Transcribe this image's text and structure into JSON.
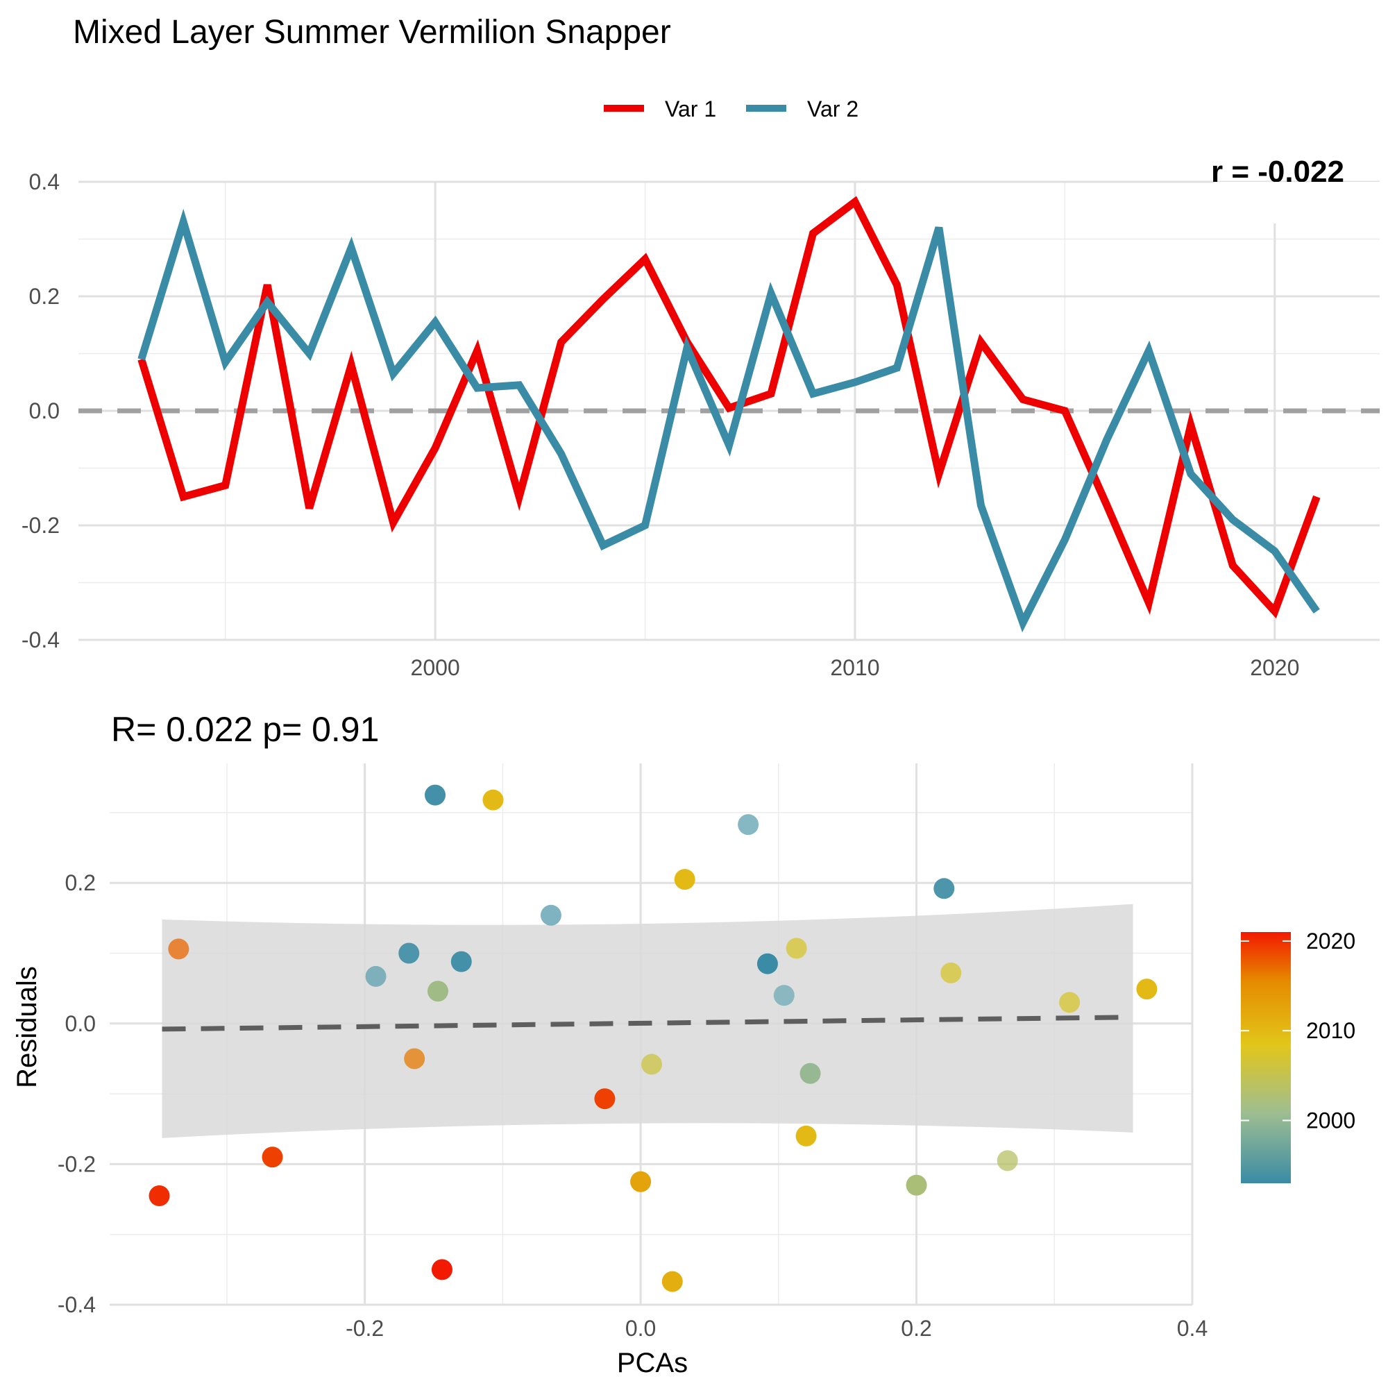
{
  "chart_data": [
    {
      "type": "line",
      "title": "Mixed Layer Summer Vermilion Snapper",
      "corner_text": "r = -0.022",
      "x_ticks": [
        "2000",
        "2010",
        "2020"
      ],
      "y_ticks": [
        "-0.4",
        "-0.2",
        "0.0",
        "0.2",
        "0.4"
      ],
      "xlim": [
        1991.5,
        2022.5
      ],
      "ylim": [
        -0.4,
        0.4
      ],
      "grid": true,
      "reference_line": 0.0,
      "legend_position": "top",
      "x": [
        1993,
        1994,
        1995,
        1996,
        1997,
        1998,
        1999,
        2000,
        2001,
        2002,
        2003,
        2004,
        2005,
        2006,
        2007,
        2008,
        2009,
        2010,
        2011,
        2012,
        2013,
        2014,
        2015,
        2016,
        2017,
        2018,
        2019,
        2020,
        2021
      ],
      "series": [
        {
          "name": "Var 1",
          "color": "#EE0000",
          "values": [
            0.09,
            -0.15,
            -0.13,
            0.22,
            -0.17,
            0.08,
            -0.195,
            -0.065,
            0.105,
            -0.15,
            0.12,
            0.195,
            0.265,
            0.12,
            0.005,
            0.03,
            0.31,
            0.365,
            0.22,
            -0.11,
            0.12,
            0.02,
            0.0,
            -0.165,
            -0.335,
            -0.025,
            -0.27,
            -0.35,
            -0.15
          ]
        },
        {
          "name": "Var 2",
          "color": "#3A8BA5",
          "values": [
            0.09,
            0.33,
            0.085,
            0.19,
            0.1,
            0.285,
            0.065,
            0.155,
            0.04,
            0.045,
            -0.075,
            -0.235,
            -0.2,
            0.11,
            -0.06,
            0.205,
            0.03,
            0.05,
            0.075,
            0.32,
            -0.165,
            -0.37,
            -0.225,
            -0.05,
            0.105,
            -0.11,
            -0.19,
            -0.245,
            -0.35
          ]
        }
      ]
    },
    {
      "type": "scatter",
      "subtitle": "R= 0.022  p= 0.91",
      "xlabel": "PCAs",
      "ylabel": "Residuals",
      "x_ticks": [
        "-0.2",
        "0.0",
        "0.2",
        "0.4"
      ],
      "y_ticks": [
        "-0.4",
        "-0.2",
        "0.0",
        "0.2"
      ],
      "xlim": [
        -0.385,
        0.4
      ],
      "ylim": [
        -0.4,
        0.37
      ],
      "grid": true,
      "colorbar": {
        "title": "",
        "ticks": [
          "2000",
          "2010",
          "2020"
        ],
        "range": [
          1993,
          2021
        ],
        "colors": [
          "#3A8BA5",
          "#9EBE91",
          "#E2C61A",
          "#E58C00",
          "#F21A00"
        ]
      },
      "trend": {
        "x": [
          -0.347,
          0.357
        ],
        "y": [
          -0.008,
          0.009
        ],
        "band_lower": [
          -0.163,
          -0.155
        ],
        "band_upper": [
          0.148,
          0.17
        ],
        "band_mid_lower": -0.075,
        "band_mid_upper": 0.075
      },
      "points": [
        {
          "x": -0.349,
          "y": -0.245,
          "year": 2020
        },
        {
          "x": -0.335,
          "y": 0.106,
          "year": 2017
        },
        {
          "x": -0.267,
          "y": -0.19,
          "year": 2019
        },
        {
          "x": -0.192,
          "y": 0.067,
          "year": 1997
        },
        {
          "x": -0.168,
          "y": 0.1,
          "year": 1995
        },
        {
          "x": -0.164,
          "y": -0.05,
          "year": 2016
        },
        {
          "x": -0.147,
          "y": 0.046,
          "year": 2004
        },
        {
          "x": -0.149,
          "y": 0.325,
          "year": 1994
        },
        {
          "x": -0.144,
          "y": -0.35,
          "year": 2021
        },
        {
          "x": -0.13,
          "y": 0.088,
          "year": 1994
        },
        {
          "x": -0.107,
          "y": 0.318,
          "year": 2011
        },
        {
          "x": -0.065,
          "y": 0.154,
          "year": 1996
        },
        {
          "x": -0.026,
          "y": -0.107,
          "year": 2019
        },
        {
          "x": 0.0,
          "y": -0.225,
          "year": 2013
        },
        {
          "x": 0.008,
          "y": -0.058,
          "year": 2008
        },
        {
          "x": 0.023,
          "y": -0.367,
          "year": 2012
        },
        {
          "x": 0.032,
          "y": 0.205,
          "year": 2011
        },
        {
          "x": 0.078,
          "y": 0.283,
          "year": 1997
        },
        {
          "x": 0.092,
          "y": 0.085,
          "year": 1993
        },
        {
          "x": 0.104,
          "y": 0.04,
          "year": 1999
        },
        {
          "x": 0.113,
          "y": 0.107,
          "year": 2009
        },
        {
          "x": 0.12,
          "y": -0.16,
          "year": 2011
        },
        {
          "x": 0.123,
          "y": -0.071,
          "year": 2003
        },
        {
          "x": 0.2,
          "y": -0.23,
          "year": 2005
        },
        {
          "x": 0.22,
          "y": 0.192,
          "year": 1995
        },
        {
          "x": 0.225,
          "y": 0.072,
          "year": 2009
        },
        {
          "x": 0.266,
          "y": -0.195,
          "year": 2006
        },
        {
          "x": 0.311,
          "y": 0.03,
          "year": 2009
        },
        {
          "x": 0.367,
          "y": 0.049,
          "year": 2011
        }
      ]
    }
  ]
}
